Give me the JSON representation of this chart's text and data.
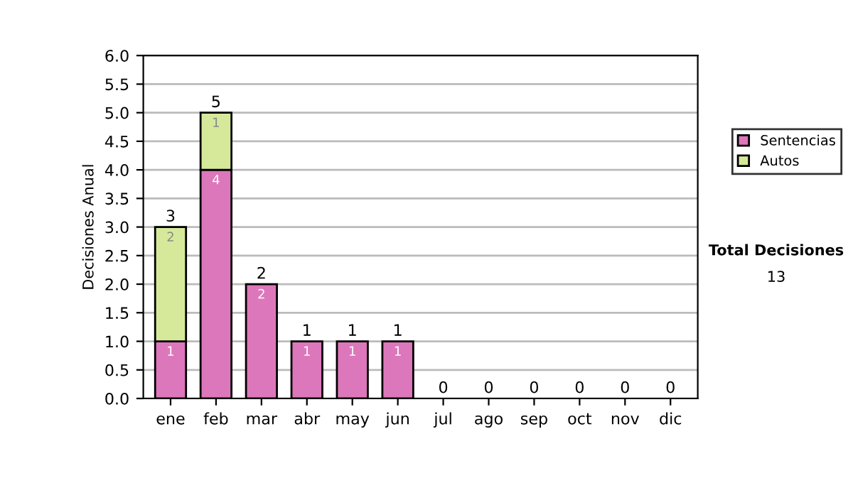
{
  "chart_data": {
    "type": "bar",
    "stacked": true,
    "ylabel": "Decisiones Anual",
    "categories": [
      "ene",
      "feb",
      "mar",
      "abr",
      "may",
      "jun",
      "jul",
      "ago",
      "sep",
      "oct",
      "nov",
      "dic"
    ],
    "series": [
      {
        "name": "Sentencias",
        "color": "#dd77bb",
        "values": [
          1,
          4,
          2,
          1,
          1,
          1,
          0,
          0,
          0,
          0,
          0,
          0
        ],
        "value_labels": [
          "1",
          "4",
          "2",
          "1",
          "1",
          "1",
          null,
          null,
          null,
          null,
          null,
          null
        ]
      },
      {
        "name": "Autos",
        "color": "#d6e99a",
        "values": [
          2,
          1,
          0,
          0,
          0,
          0,
          0,
          0,
          0,
          0,
          0,
          0
        ],
        "value_labels": [
          "2",
          "1",
          null,
          null,
          null,
          null,
          null,
          null,
          null,
          null,
          null,
          null
        ]
      }
    ],
    "totals": [
      "3",
      "5",
      "2",
      "1",
      "1",
      "1",
      "0",
      "0",
      "0",
      "0",
      "0",
      "0"
    ],
    "ylim": [
      0,
      6
    ],
    "yticks": [
      {
        "value": 0,
        "label": "0.0"
      },
      {
        "value": 0.5,
        "label": "0.5"
      },
      {
        "value": 1,
        "label": "1.0"
      },
      {
        "value": 1.5,
        "label": "1.5"
      },
      {
        "value": 2,
        "label": "2.0"
      },
      {
        "value": 2.5,
        "label": "2.5"
      },
      {
        "value": 3,
        "label": "3.0"
      },
      {
        "value": 3.5,
        "label": "3.5"
      },
      {
        "value": 4,
        "label": "4.0"
      },
      {
        "value": 4.5,
        "label": "4.5"
      },
      {
        "value": 5,
        "label": "5.0"
      },
      {
        "value": 5.5,
        "label": "5.5"
      },
      {
        "value": 6,
        "label": "6.0"
      }
    ],
    "grid": "y",
    "legend": "right",
    "annotations": [
      "Total Decisiones",
      "13"
    ]
  }
}
